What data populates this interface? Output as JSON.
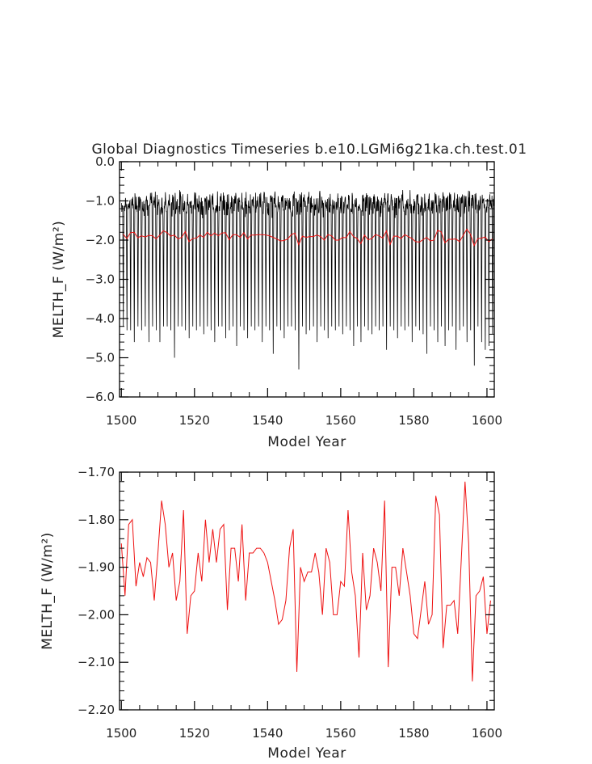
{
  "figure": {
    "title": "Global Diagnostics Timeseries b.e10.LGMi6g21ka.ch.test.01"
  },
  "chart_data": [
    {
      "type": "line",
      "title": "Global Diagnostics Timeseries b.e10.LGMi6g21ka.ch.test.01",
      "xlabel": "Model Year",
      "ylabel": "MELTH_F (W/m²)",
      "xlim": [
        1499.5,
        1602
      ],
      "ylim": [
        -6.0,
        0.0
      ],
      "xticks": [
        1500,
        1520,
        1540,
        1560,
        1580,
        1600
      ],
      "xtick_labels": [
        "1500",
        "1520",
        "1540",
        "1560",
        "1580",
        "1600"
      ],
      "yticks": [
        0,
        -1,
        -2,
        -3,
        -4,
        -5,
        -6
      ],
      "ytick_labels": [
        "0.0",
        "−1.0",
        "−2.0",
        "−3.0",
        "−4.0",
        "−5.0",
        "−6.0"
      ],
      "grid": false,
      "monthly_series": {
        "color": "#000000",
        "description_of_shape": "monthly values",
        "years": [
          1500,
          1501,
          1502,
          1503,
          1504,
          1505,
          1506,
          1507,
          1508,
          1509,
          1510,
          1511,
          1512,
          1513,
          1514,
          1515,
          1516,
          1517,
          1518,
          1519,
          1520,
          1521,
          1522,
          1523,
          1524,
          1525,
          1526,
          1527,
          1528,
          1529,
          1530,
          1531,
          1532,
          1533,
          1534,
          1535,
          1536,
          1537,
          1538,
          1539,
          1540,
          1541,
          1542,
          1543,
          1544,
          1545,
          1546,
          1547,
          1548,
          1549,
          1550,
          1551,
          1552,
          1553,
          1554,
          1555,
          1556,
          1557,
          1558,
          1559,
          1560,
          1561,
          1562,
          1563,
          1564,
          1565,
          1566,
          1567,
          1568,
          1569,
          1570,
          1571,
          1572,
          1573,
          1574,
          1575,
          1576,
          1577,
          1578,
          1579,
          1580,
          1581,
          1582,
          1583,
          1584,
          1585,
          1586,
          1587,
          1588,
          1589,
          1590,
          1591,
          1592,
          1593,
          1594,
          1595,
          1596,
          1597,
          1598,
          1599,
          1600,
          1601
        ],
        "annual_minimum": [
          -4.2,
          -4.3,
          -4.3,
          -4.6,
          -4.2,
          -4.3,
          -4.2,
          -4.6,
          -4.2,
          -4.3,
          -4.6,
          -4.2,
          -4.2,
          -4.3,
          -5.0,
          -4.2,
          -4.2,
          -4.3,
          -4.5,
          -4.2,
          -4.3,
          -4.2,
          -4.4,
          -4.2,
          -4.3,
          -4.6,
          -4.2,
          -4.2,
          -4.5,
          -4.3,
          -4.2,
          -4.7,
          -4.2,
          -4.3,
          -4.5,
          -4.2,
          -4.3,
          -4.2,
          -4.6,
          -4.2,
          -4.3,
          -4.9,
          -4.2,
          -4.3,
          -4.5,
          -4.2,
          -4.2,
          -4.3,
          -5.3,
          -4.2,
          -4.4,
          -4.3,
          -4.2,
          -4.6,
          -4.2,
          -4.3,
          -4.5,
          -4.2,
          -4.3,
          -4.2,
          -4.4,
          -4.2,
          -4.3,
          -4.7,
          -4.2,
          -4.6,
          -4.2,
          -4.3,
          -4.4,
          -4.2,
          -4.3,
          -4.2,
          -4.8,
          -4.2,
          -4.3,
          -4.5,
          -4.2,
          -4.3,
          -4.2,
          -4.6,
          -4.2,
          -4.3,
          -4.4,
          -4.9,
          -4.2,
          -4.3,
          -4.6,
          -4.2,
          -4.7,
          -4.3,
          -4.2,
          -4.8,
          -4.3,
          -4.2,
          -4.6,
          -4.3,
          -5.2,
          -4.2,
          -4.6,
          -4.8,
          -4.7,
          -4.4
        ],
        "annual_maximum_range": [
          -1.25,
          -0.8
        ]
      },
      "annual_series": {
        "color": "#ee1111",
        "x": [
          1500,
          1501,
          1502,
          1503,
          1504,
          1505,
          1506,
          1507,
          1508,
          1509,
          1510,
          1511,
          1512,
          1513,
          1514,
          1515,
          1516,
          1517,
          1518,
          1519,
          1520,
          1521,
          1522,
          1523,
          1524,
          1525,
          1526,
          1527,
          1528,
          1529,
          1530,
          1531,
          1532,
          1533,
          1534,
          1535,
          1536,
          1537,
          1538,
          1539,
          1540,
          1541,
          1542,
          1543,
          1544,
          1545,
          1546,
          1547,
          1548,
          1549,
          1550,
          1551,
          1552,
          1553,
          1554,
          1555,
          1556,
          1557,
          1558,
          1559,
          1560,
          1561,
          1562,
          1563,
          1564,
          1565,
          1566,
          1567,
          1568,
          1569,
          1570,
          1571,
          1572,
          1573,
          1574,
          1575,
          1576,
          1577,
          1578,
          1579,
          1580,
          1581,
          1582,
          1583,
          1584,
          1585,
          1586,
          1587,
          1588,
          1589,
          1590,
          1591,
          1592,
          1593,
          1594,
          1595,
          1596,
          1597,
          1598,
          1599,
          1600,
          1601
        ],
        "y": [
          -1.85,
          -1.96,
          -1.81,
          -1.8,
          -1.94,
          -1.89,
          -1.92,
          -1.88,
          -1.89,
          -1.97,
          -1.87,
          -1.76,
          -1.81,
          -1.9,
          -1.87,
          -1.97,
          -1.93,
          -1.78,
          -2.04,
          -1.96,
          -1.95,
          -1.87,
          -1.93,
          -1.8,
          -1.89,
          -1.82,
          -1.89,
          -1.82,
          -1.81,
          -1.99,
          -1.86,
          -1.86,
          -1.93,
          -1.81,
          -1.97,
          -1.87,
          -1.87,
          -1.86,
          -1.86,
          -1.87,
          -1.89,
          -1.93,
          -1.97,
          -2.02,
          -2.01,
          -1.97,
          -1.86,
          -1.82,
          -2.12,
          -1.9,
          -1.93,
          -1.91,
          -1.91,
          -1.87,
          -1.91,
          -2.0,
          -1.86,
          -1.89,
          -2.0,
          -2.0,
          -1.93,
          -1.94,
          -1.78,
          -1.91,
          -1.96,
          -2.09,
          -1.87,
          -1.99,
          -1.96,
          -1.86,
          -1.89,
          -1.95,
          -1.76,
          -2.11,
          -1.9,
          -1.9,
          -1.96,
          -1.86,
          -1.91,
          -1.96,
          -2.04,
          -2.05,
          -1.99,
          -1.93,
          -2.02,
          -2.0,
          -1.75,
          -1.79,
          -2.07,
          -1.98,
          -1.98,
          -1.97,
          -2.04,
          -1.88,
          -1.72,
          -1.85,
          -2.14,
          -1.96,
          -1.95,
          -1.92,
          -2.04,
          -1.97
        ]
      }
    },
    {
      "type": "line",
      "title": "",
      "xlabel": "Model Year",
      "ylabel": "MELTH_F (W/m²)",
      "xlim": [
        1499.5,
        1602
      ],
      "ylim": [
        -2.2,
        -1.7
      ],
      "xticks": [
        1500,
        1520,
        1540,
        1560,
        1580,
        1600
      ],
      "xtick_labels": [
        "1500",
        "1520",
        "1540",
        "1560",
        "1580",
        "1600"
      ],
      "yticks": [
        -1.7,
        -1.8,
        -1.9,
        -2.0,
        -2.1,
        -2.2
      ],
      "ytick_labels": [
        "−1.70",
        "−1.80",
        "−1.90",
        "−2.00",
        "−2.10",
        "−2.20"
      ],
      "grid": false,
      "series": [
        {
          "color": "#ee1111",
          "x": [
            1500,
            1501,
            1502,
            1503,
            1504,
            1505,
            1506,
            1507,
            1508,
            1509,
            1510,
            1511,
            1512,
            1513,
            1514,
            1515,
            1516,
            1517,
            1518,
            1519,
            1520,
            1521,
            1522,
            1523,
            1524,
            1525,
            1526,
            1527,
            1528,
            1529,
            1530,
            1531,
            1532,
            1533,
            1534,
            1535,
            1536,
            1537,
            1538,
            1539,
            1540,
            1541,
            1542,
            1543,
            1544,
            1545,
            1546,
            1547,
            1548,
            1549,
            1550,
            1551,
            1552,
            1553,
            1554,
            1555,
            1556,
            1557,
            1558,
            1559,
            1560,
            1561,
            1562,
            1563,
            1564,
            1565,
            1566,
            1567,
            1568,
            1569,
            1570,
            1571,
            1572,
            1573,
            1574,
            1575,
            1576,
            1577,
            1578,
            1579,
            1580,
            1581,
            1582,
            1583,
            1584,
            1585,
            1586,
            1587,
            1588,
            1589,
            1590,
            1591,
            1592,
            1593,
            1594,
            1595,
            1596,
            1597,
            1598,
            1599,
            1600,
            1601
          ],
          "y": [
            -1.85,
            -1.96,
            -1.81,
            -1.8,
            -1.94,
            -1.89,
            -1.92,
            -1.88,
            -1.89,
            -1.97,
            -1.87,
            -1.76,
            -1.81,
            -1.9,
            -1.87,
            -1.97,
            -1.93,
            -1.78,
            -2.04,
            -1.96,
            -1.95,
            -1.87,
            -1.93,
            -1.8,
            -1.89,
            -1.82,
            -1.89,
            -1.82,
            -1.81,
            -1.99,
            -1.86,
            -1.86,
            -1.93,
            -1.81,
            -1.97,
            -1.87,
            -1.87,
            -1.86,
            -1.86,
            -1.87,
            -1.89,
            -1.93,
            -1.97,
            -2.02,
            -2.01,
            -1.97,
            -1.86,
            -1.82,
            -2.12,
            -1.9,
            -1.93,
            -1.91,
            -1.91,
            -1.87,
            -1.91,
            -2.0,
            -1.86,
            -1.89,
            -2.0,
            -2.0,
            -1.93,
            -1.94,
            -1.78,
            -1.91,
            -1.96,
            -2.09,
            -1.87,
            -1.99,
            -1.96,
            -1.86,
            -1.89,
            -1.95,
            -1.76,
            -2.11,
            -1.9,
            -1.9,
            -1.96,
            -1.86,
            -1.91,
            -1.96,
            -2.04,
            -2.05,
            -1.99,
            -1.93,
            -2.02,
            -2.0,
            -1.75,
            -1.79,
            -2.07,
            -1.98,
            -1.98,
            -1.97,
            -2.04,
            -1.88,
            -1.72,
            -1.85,
            -2.14,
            -1.96,
            -1.95,
            -1.92,
            -2.04,
            -1.97
          ]
        }
      ]
    }
  ]
}
